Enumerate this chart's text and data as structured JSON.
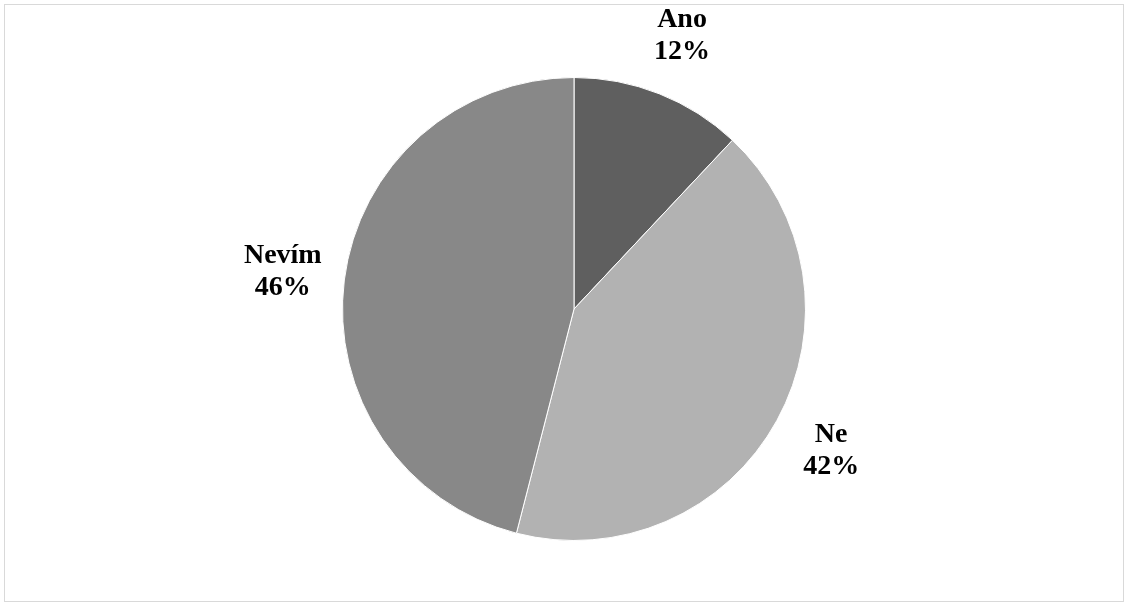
{
  "chart_data": {
    "type": "pie",
    "categories": [
      "Ano",
      "Ne",
      "Nevím"
    ],
    "values": [
      12,
      42,
      46
    ],
    "colors": [
      "#5f5f5f",
      "#b2b2b2",
      "#888888"
    ],
    "value_labels": [
      "12%",
      "42%",
      "46%"
    ],
    "legend": false
  }
}
